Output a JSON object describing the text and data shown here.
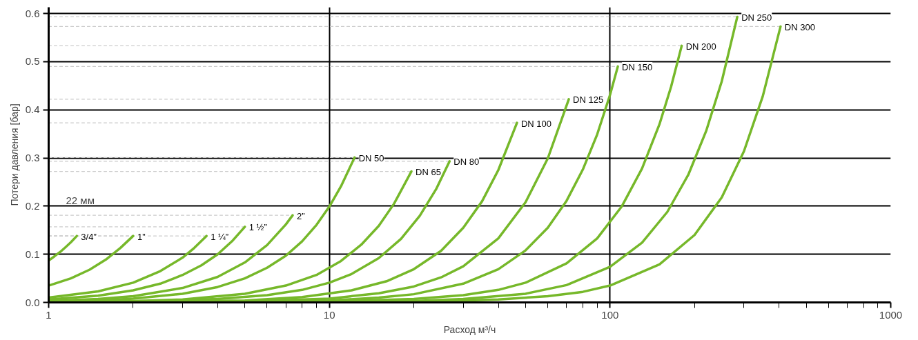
{
  "chart_data": {
    "type": "line",
    "xlabel": "Расход м³/ч",
    "ylabel": "Потери давления [бар]",
    "log": "x",
    "xlim": [
      1,
      1000
    ],
    "xticks": [
      1,
      10,
      100,
      1000
    ],
    "ylim": [
      0,
      0.613
    ],
    "yticks": [
      {
        "value": 0,
        "label": "0.0"
      },
      0.1,
      0.2,
      0.3,
      0.4,
      0.5,
      0.6
    ],
    "grid": true,
    "marker": "none",
    "line_style": "solid",
    "annotations": [
      "22 мм"
    ],
    "series": [
      {
        "name": "3/4”",
        "color": "#76b82a",
        "x": [
          1,
          1.05,
          1.1,
          1.15,
          1.2,
          1.26
        ],
        "values": [
          0.087,
          0.096,
          0.105,
          0.115,
          0.125,
          0.138
        ]
      },
      {
        "name": "1”",
        "color": "#76b82a",
        "x": [
          1,
          1.2,
          1.4,
          1.6,
          1.8,
          2
        ],
        "values": [
          0.035,
          0.05,
          0.068,
          0.089,
          0.113,
          0.138
        ]
      },
      {
        "name": "1 ¼”",
        "color": "#76b82a",
        "x": [
          1,
          1.5,
          2,
          2.5,
          3,
          3.3,
          3.65
        ],
        "values": [
          0.01,
          0.023,
          0.041,
          0.065,
          0.093,
          0.113,
          0.138
        ]
      },
      {
        "name": "1 ½”",
        "color": "#76b82a",
        "x": [
          1,
          1.5,
          2,
          2.5,
          3,
          3.5,
          4,
          4.5,
          5
        ],
        "values": [
          0.006,
          0.014,
          0.025,
          0.039,
          0.057,
          0.077,
          0.1,
          0.127,
          0.157
        ]
      },
      {
        "name": "2”",
        "color": "#76b82a",
        "x": [
          1,
          1.5,
          2,
          3,
          4,
          5,
          6,
          7,
          7.4
        ],
        "values": [
          0.003,
          0.007,
          0.013,
          0.03,
          0.053,
          0.083,
          0.119,
          0.162,
          0.181
        ]
      },
      {
        "name": "DN 50",
        "color": "#76b82a",
        "x": [
          1,
          1.5,
          2,
          3,
          4,
          5,
          6,
          7,
          8,
          9,
          10,
          11,
          12.3
        ],
        "values": [
          0.002,
          0.004,
          0.008,
          0.018,
          0.032,
          0.05,
          0.072,
          0.097,
          0.127,
          0.161,
          0.199,
          0.241,
          0.301
        ]
      },
      {
        "name": "DN 65",
        "color": "#76b82a",
        "x": [
          1,
          2,
          3,
          5,
          7,
          9,
          11,
          13,
          15,
          17,
          19.6
        ],
        "values": [
          0.001,
          0.003,
          0.006,
          0.018,
          0.035,
          0.057,
          0.086,
          0.12,
          0.159,
          0.205,
          0.272
        ]
      },
      {
        "name": "DN 80",
        "color": "#76b82a",
        "x": [
          1,
          2,
          4,
          6,
          8,
          10,
          12,
          15,
          18,
          21,
          24,
          26.8
        ],
        "values": [
          0.0,
          0.002,
          0.007,
          0.015,
          0.026,
          0.041,
          0.059,
          0.092,
          0.132,
          0.18,
          0.235,
          0.293
        ]
      },
      {
        "name": "DN 100",
        "color": "#76b82a",
        "x": [
          1,
          3,
          5,
          8,
          12,
          16,
          20,
          25,
          30,
          35,
          40,
          46.6
        ],
        "values": [
          0.0,
          0.002,
          0.004,
          0.011,
          0.025,
          0.044,
          0.069,
          0.107,
          0.155,
          0.21,
          0.275,
          0.373
        ]
      },
      {
        "name": "DN 125",
        "color": "#76b82a",
        "x": [
          1,
          3,
          5,
          10,
          15,
          20,
          25,
          30,
          40,
          50,
          60,
          71.3
        ],
        "values": [
          0.0,
          0.001,
          0.002,
          0.008,
          0.019,
          0.033,
          0.052,
          0.075,
          0.133,
          0.208,
          0.299,
          0.422
        ]
      },
      {
        "name": "DN 150",
        "color": "#76b82a",
        "x": [
          1,
          5,
          10,
          15,
          20,
          30,
          40,
          50,
          60,
          70,
          80,
          90,
          100,
          106.6
        ],
        "values": [
          0.0,
          0.001,
          0.004,
          0.01,
          0.017,
          0.039,
          0.069,
          0.108,
          0.155,
          0.211,
          0.276,
          0.349,
          0.431,
          0.49
        ]
      },
      {
        "name": "DN 200",
        "color": "#76b82a",
        "x": [
          1,
          10,
          20,
          30,
          40,
          50,
          70,
          90,
          110,
          130,
          150,
          165,
          180
        ],
        "values": [
          0.0,
          0.002,
          0.007,
          0.015,
          0.026,
          0.041,
          0.081,
          0.133,
          0.199,
          0.278,
          0.37,
          0.448,
          0.533
        ]
      },
      {
        "name": "DN 250",
        "color": "#76b82a",
        "x": [
          1,
          10,
          20,
          30,
          50,
          70,
          100,
          130,
          160,
          190,
          220,
          250,
          284
        ],
        "values": [
          0.0,
          0.001,
          0.003,
          0.007,
          0.018,
          0.036,
          0.074,
          0.124,
          0.188,
          0.265,
          0.356,
          0.459,
          0.593
        ]
      },
      {
        "name": "DN 300",
        "color": "#76b82a",
        "x": [
          1,
          10,
          20,
          40,
          60,
          80,
          100,
          150,
          200,
          250,
          300,
          350,
          405
        ],
        "values": [
          0.0,
          0.0,
          0.001,
          0.006,
          0.013,
          0.022,
          0.035,
          0.079,
          0.14,
          0.218,
          0.314,
          0.428,
          0.573
        ]
      },
      {
        "type": "line",
        "line_style": "dashed",
        "color": "#cccccc",
        "x": [
          1,
          1.26
        ],
        "values": [
          0.138,
          0.138
        ]
      },
      {
        "type": "line",
        "line_style": "dashed",
        "color": "#cccccc",
        "x": [
          1,
          2
        ],
        "values": [
          0.138,
          0.138
        ]
      },
      {
        "type": "line",
        "line_style": "dashed",
        "color": "#cccccc",
        "x": [
          1,
          3.65
        ],
        "values": [
          0.138,
          0.138
        ]
      },
      {
        "type": "line",
        "line_style": "dashed",
        "color": "#cccccc",
        "x": [
          1,
          5
        ],
        "values": [
          0.157,
          0.157
        ]
      },
      {
        "type": "line",
        "line_style": "dashed",
        "color": "#cccccc",
        "x": [
          1,
          7.4
        ],
        "values": [
          0.181,
          0.181
        ]
      },
      {
        "type": "line",
        "line_style": "dashed",
        "color": "#cccccc",
        "x": [
          1,
          12.3
        ],
        "values": [
          0.301,
          0.301
        ]
      },
      {
        "type": "line",
        "line_style": "dashed",
        "color": "#cccccc",
        "x": [
          1,
          19.6
        ],
        "values": [
          0.272,
          0.272
        ]
      },
      {
        "type": "line",
        "line_style": "dashed",
        "color": "#cccccc",
        "x": [
          1,
          26.8
        ],
        "values": [
          0.293,
          0.293
        ]
      },
      {
        "type": "line",
        "line_style": "dashed",
        "color": "#cccccc",
        "x": [
          1,
          46.6
        ],
        "values": [
          0.373,
          0.373
        ]
      },
      {
        "type": "line",
        "line_style": "dashed",
        "color": "#cccccc",
        "x": [
          1,
          71.3
        ],
        "values": [
          0.422,
          0.422
        ]
      },
      {
        "type": "line",
        "line_style": "dashed",
        "color": "#cccccc",
        "x": [
          1,
          106.6
        ],
        "values": [
          0.49,
          0.49
        ]
      },
      {
        "type": "line",
        "line_style": "dashed",
        "color": "#cccccc",
        "x": [
          1,
          180
        ],
        "values": [
          0.533,
          0.533
        ]
      },
      {
        "type": "line",
        "line_style": "dashed",
        "color": "#cccccc",
        "x": [
          1,
          284
        ],
        "values": [
          0.593,
          0.593
        ]
      },
      {
        "type": "line",
        "line_style": "dashed",
        "color": "#cccccc",
        "x": [
          1,
          405
        ],
        "values": [
          0.573,
          0.573
        ]
      }
    ]
  }
}
